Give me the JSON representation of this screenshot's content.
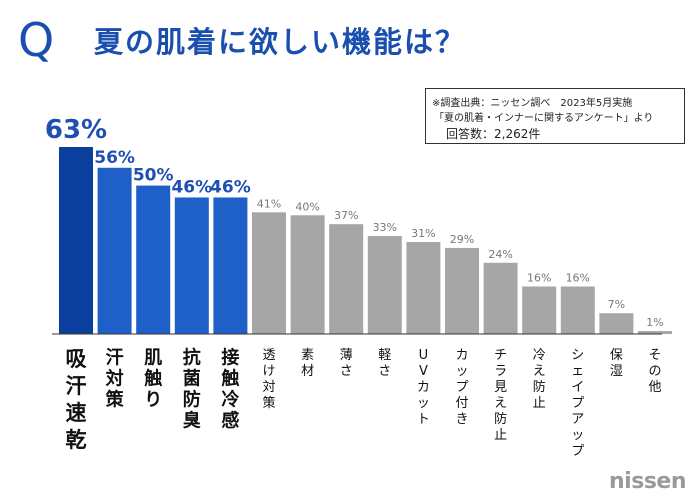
{
  "header": {
    "q_mark": "Q",
    "title": "夏の肌着に欲しい機能は？"
  },
  "source_note": {
    "line1": "※調査出典：ニッセン調べ　2023年5月実施",
    "line2": "「夏の肌着・インナーに関するアンケート」より",
    "line3": "回答数：2,262件"
  },
  "brand": "nissen",
  "colors": {
    "title": "#1a4fb0",
    "top_bar": "#0b3f9e",
    "highlight_bar": "#1e5fc8",
    "gray_bar": "#a6a6a6",
    "highlight_label": "#1e4fb3",
    "gray_label": "#777777",
    "baseline": "#333333"
  },
  "chart_data": {
    "type": "bar",
    "title": "夏の肌着に欲しい機能は？",
    "xlabel": "",
    "ylabel": "",
    "ylim": [
      0,
      63
    ],
    "value_suffix": "%",
    "highlighted_count": 5,
    "categories": [
      "吸汗速乾",
      "汗対策",
      "肌触り",
      "抗菌防臭",
      "接触冷感",
      "透け対策",
      "素材",
      "薄さ",
      "軽さ",
      "UVカット",
      "カップ付き",
      "チラ見え防止",
      "冷え防止",
      "シェイプアップ",
      "保湿",
      "その他"
    ],
    "values": [
      63,
      56,
      50,
      46,
      46,
      41,
      40,
      37,
      33,
      31,
      29,
      24,
      16,
      16,
      7,
      1
    ]
  }
}
